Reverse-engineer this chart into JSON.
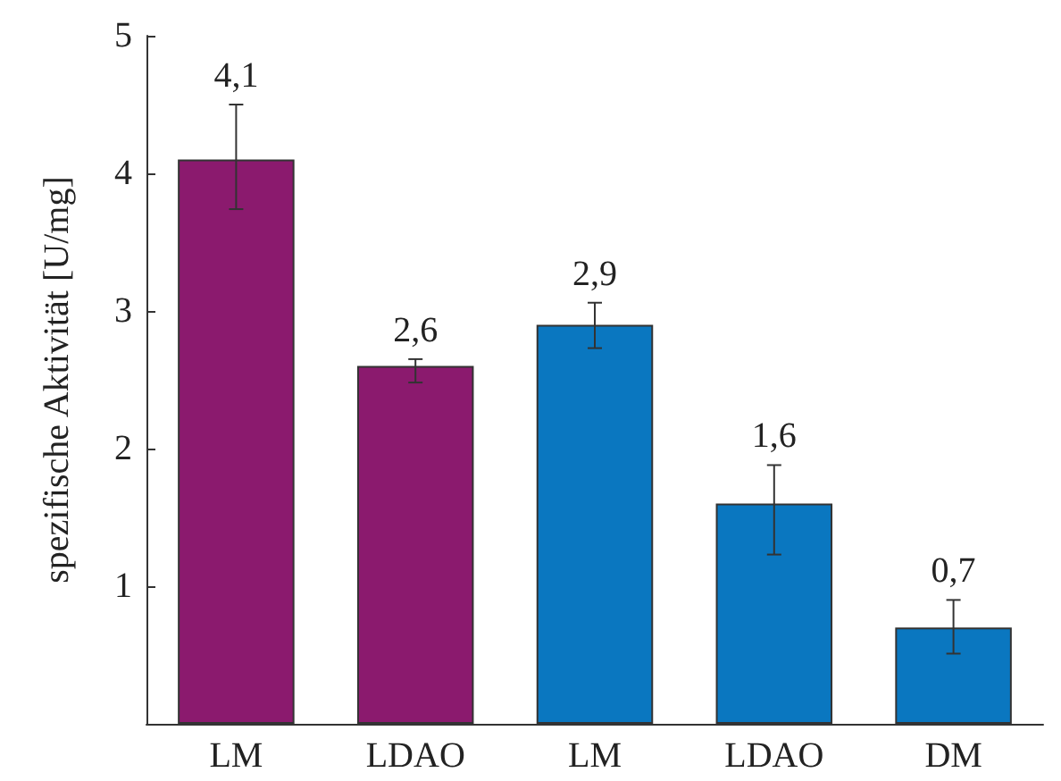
{
  "chart_data": {
    "type": "bar",
    "ylabel": "spezifische Aktivität [U/mg]",
    "categories": [
      "LM",
      "LDAO",
      "LM",
      "LDAO",
      "DM"
    ],
    "values": [
      4.1,
      2.6,
      2.9,
      1.6,
      0.7
    ],
    "value_labels": [
      "4,1",
      "2,6",
      "2,9",
      "1,6",
      "0,7"
    ],
    "colors": [
      "#8b1a6e",
      "#8b1a6e",
      "#0a77c0",
      "#0a77c0",
      "#0a77c0"
    ],
    "errors": [
      [
        3.74,
        4.5
      ],
      [
        2.48,
        2.65
      ],
      [
        2.73,
        3.06
      ],
      [
        1.23,
        1.88
      ],
      [
        0.51,
        0.9
      ]
    ],
    "ylim": [
      0,
      5
    ],
    "yticks": [
      1,
      2,
      3,
      4,
      5
    ],
    "grid": false
  }
}
